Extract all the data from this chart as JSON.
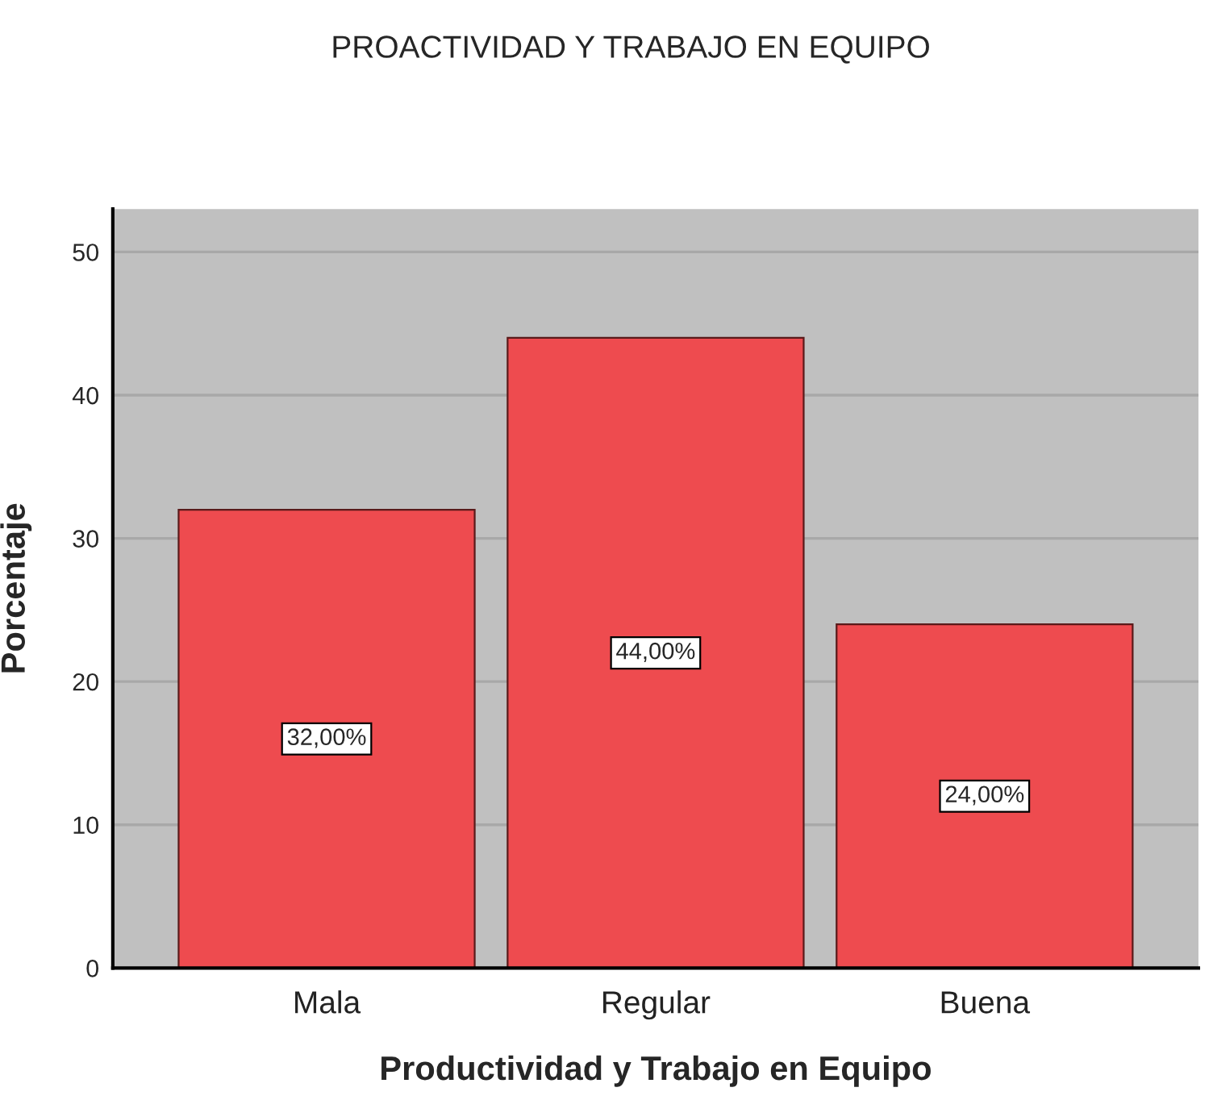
{
  "chart_data": {
    "type": "bar",
    "title": "PROACTIVIDAD Y TRABAJO EN EQUIPO",
    "xlabel": "Productividad y Trabajo en Equipo",
    "ylabel": "Porcentaje",
    "categories": [
      "Mala",
      "Regular",
      "Buena"
    ],
    "values": [
      32,
      44,
      24
    ],
    "value_labels": [
      "32,00%",
      "44,00%",
      "24,00%"
    ],
    "color": "#ee4b4f",
    "ylim": [
      0,
      53
    ],
    "yticks": [
      0,
      10,
      20,
      30,
      40,
      50
    ],
    "grid": "y",
    "legend": false
  }
}
